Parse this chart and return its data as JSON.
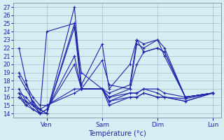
{
  "title": "",
  "xlabel": "Température (°c)",
  "ylabel": "",
  "background_color": "#d4eef4",
  "grid_color": "#b0cdd8",
  "line_color": "#2222aa",
  "marker": "+",
  "ylim": [
    13.5,
    27.5
  ],
  "yticks": [
    14,
    15,
    16,
    17,
    18,
    19,
    20,
    21,
    22,
    23,
    24,
    25,
    26,
    27
  ],
  "xtick_labels": [
    "",
    "Ven",
    "",
    "Sam",
    "",
    "Dim",
    "",
    "Lun"
  ],
  "xtick_positions": [
    0,
    24,
    48,
    72,
    96,
    120,
    144,
    168
  ],
  "series": [
    [
      22.0,
      18.0,
      15.0,
      14.5,
      14.0,
      27.0,
      17.0,
      17.0,
      15.0,
      16.0,
      16.0,
      16.5,
      16.0,
      16.0,
      15.5,
      16.5
    ],
    [
      18.5,
      17.0,
      15.5,
      14.0,
      24.0,
      25.0,
      19.0,
      17.0,
      15.5,
      16.0,
      16.0,
      16.5,
      16.0,
      16.0,
      15.5,
      16.5
    ],
    [
      16.5,
      16.0,
      15.0,
      14.5,
      14.0,
      24.5,
      17.0,
      17.0,
      15.5,
      16.5,
      16.5,
      17.0,
      16.5,
      16.0,
      15.8,
      16.5
    ],
    [
      16.0,
      15.5,
      14.5,
      14.0,
      14.0,
      25.0,
      17.5,
      22.5,
      17.0,
      20.0,
      23.0,
      21.5,
      22.0,
      21.5,
      16.0,
      16.5
    ],
    [
      16.5,
      15.0,
      14.5,
      14.0,
      14.5,
      21.0,
      17.0,
      20.5,
      17.5,
      17.0,
      22.5,
      22.0,
      23.0,
      21.0,
      16.0,
      16.5
    ],
    [
      17.0,
      15.5,
      15.0,
      14.0,
      14.5,
      20.0,
      17.0,
      17.0,
      16.5,
      17.5,
      23.0,
      22.5,
      23.0,
      22.0,
      16.0,
      16.5
    ],
    [
      19.0,
      17.5,
      16.0,
      15.0,
      15.0,
      17.0,
      17.0,
      17.0,
      16.0,
      17.0,
      20.0,
      21.5,
      22.0,
      21.5,
      16.0,
      16.5
    ],
    [
      16.0,
      15.0,
      15.5,
      14.5,
      15.0,
      16.5,
      17.0,
      17.0,
      16.0,
      16.5,
      16.5,
      17.0,
      17.0,
      16.5,
      16.0,
      16.5
    ]
  ],
  "x_positions": [
    0,
    6,
    12,
    18,
    24,
    48,
    54,
    72,
    78,
    96,
    102,
    108,
    120,
    126,
    144,
    168
  ]
}
